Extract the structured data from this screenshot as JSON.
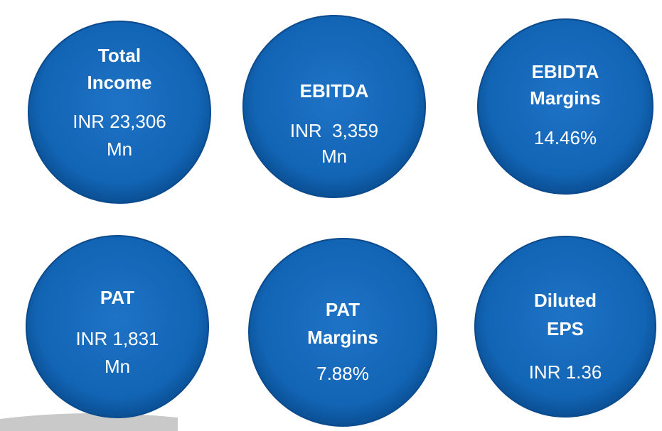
{
  "cards": [
    {
      "title": [
        "Total",
        "Income"
      ],
      "value": [
        "INR 23,306",
        "Mn"
      ]
    },
    {
      "title": [
        "EBITDA"
      ],
      "value": [
        "INR  3,359",
        "Mn"
      ]
    },
    {
      "title": [
        "EBIDTA",
        "Margins"
      ],
      "value": [
        "14.46%"
      ]
    },
    {
      "title": [
        "PAT"
      ],
      "value": [
        "INR 1,831",
        "Mn"
      ]
    },
    {
      "title": [
        "PAT",
        "Margins"
      ],
      "value": [
        "7.88%"
      ]
    },
    {
      "title": [
        "Diluted",
        "EPS"
      ],
      "value": [
        "INR 1.36"
      ]
    }
  ]
}
